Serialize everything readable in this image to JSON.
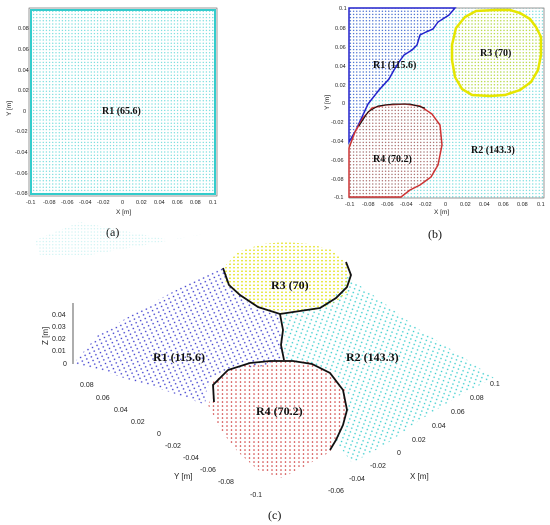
{
  "panels": {
    "a": {
      "caption": "(a)",
      "xlabel": "X [m]",
      "ylabel": "Y [m]",
      "xticks": [
        "-0.1",
        "-0.08",
        "-0.06",
        "-0.04",
        "-0.02",
        "0",
        "0.02",
        "0.04",
        "0.06",
        "0.08",
        "0.1"
      ],
      "yticks": [
        "0.08",
        "0.06",
        "0.04",
        "0.02",
        "0",
        "-0.02",
        "-0.04",
        "-0.06",
        "-0.08"
      ],
      "regions": [
        {
          "label": "R1 (65.6)",
          "color": "#33cccc"
        }
      ]
    },
    "b": {
      "caption": "(b)",
      "xlabel": "X [m]",
      "ylabel": "Y [m]",
      "xticks": [
        "-0.1",
        "-0.08",
        "-0.06",
        "-0.04",
        "-0.02",
        "0",
        "0.02",
        "0.04",
        "0.06",
        "0.08",
        "0.1"
      ],
      "yticks": [
        "0.1",
        "0.08",
        "0.06",
        "0.04",
        "0.02",
        "0",
        "-0.02",
        "-0.04",
        "-0.06",
        "-0.08",
        "-0.1"
      ],
      "regions": [
        {
          "label": "R1 (115.6)",
          "color": "#3333cc"
        },
        {
          "label": "R3 (70)",
          "color": "#e6e600"
        },
        {
          "label": "R2 (143.3)",
          "color": "#33cccc"
        },
        {
          "label": "R4 (70.2)",
          "color": "#cc3333"
        }
      ]
    },
    "c": {
      "caption": "(c)",
      "xlabel": "X [m]",
      "ylabel": "Y [m]",
      "zlabel": "Z [m]",
      "xticks": [
        "0.1",
        "0.08",
        "0.06",
        "0.04",
        "0.02",
        "0",
        "-0.02",
        "-0.04",
        "-0.06",
        "-0.08"
      ],
      "yticks": [
        "0.08",
        "0.06",
        "0.04",
        "0.02",
        "0",
        "-0.02",
        "-0.04",
        "-0.06",
        "-0.08",
        "-0.1"
      ],
      "zticks": [
        "0.04",
        "0.03",
        "0.02",
        "0.01",
        "0"
      ],
      "regions": [
        {
          "label": "R3 (70)",
          "color": "#e6e600"
        },
        {
          "label": "R1 (115.6)",
          "color": "#3333cc"
        },
        {
          "label": "R2 (143.3)",
          "color": "#33cccc"
        },
        {
          "label": "R4 (70.2)",
          "color": "#cc3333"
        }
      ]
    }
  }
}
